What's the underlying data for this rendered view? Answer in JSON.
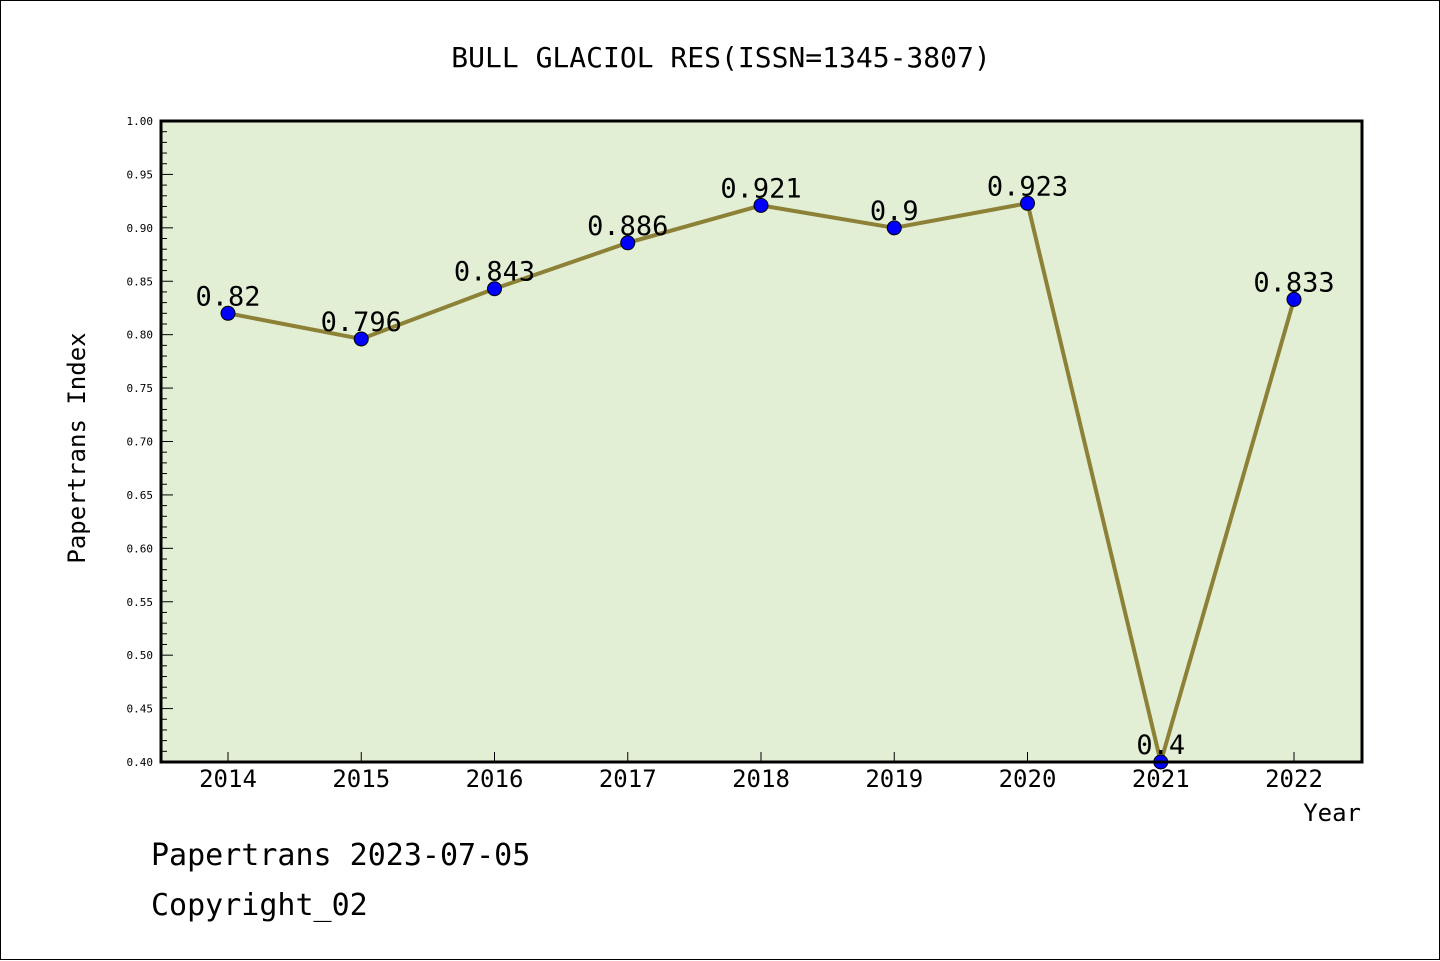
{
  "chart_data": {
    "type": "line",
    "title": "BULL GLACIOL RES(ISSN=1345-3807)",
    "xlabel": "Year",
    "ylabel": "Papertrans Index",
    "categories": [
      "2014",
      "2015",
      "2016",
      "2017",
      "2018",
      "2019",
      "2020",
      "2021",
      "2022"
    ],
    "series": [
      {
        "values": [
          0.82,
          0.796,
          0.843,
          0.886,
          0.921,
          0.9,
          0.923,
          0.4,
          0.833
        ],
        "labels": [
          "0.82",
          "0.796",
          "0.843",
          "0.886",
          "0.921",
          "0.9",
          "0.923",
          "0.4",
          "0.833"
        ]
      }
    ],
    "ylim": [
      0.4,
      1.0
    ],
    "yticks": [
      "0.40",
      "0.45",
      "0.50",
      "0.55",
      "0.60",
      "0.65",
      "0.70",
      "0.75",
      "0.80",
      "0.85",
      "0.90",
      "0.95",
      "1.00"
    ],
    "grid": false,
    "colors": {
      "plot_background": "#e2efd4",
      "line": "#8c8136",
      "marker": "#0000ff"
    }
  },
  "footer": {
    "line1": "Papertrans 2023-07-05",
    "line2": "Copyright_02"
  }
}
